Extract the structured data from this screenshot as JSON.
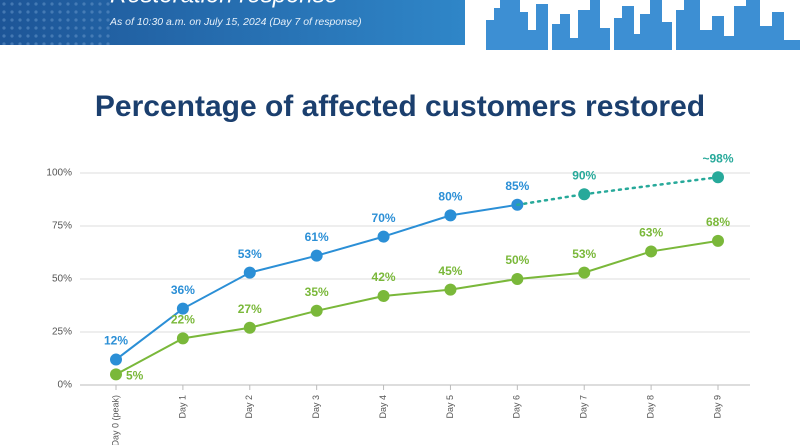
{
  "header": {
    "title": "Restoration response",
    "subtitle": "As of 10:30 a.m. on July 15, 2024 (Day 7 of response)"
  },
  "chart_data": {
    "type": "line",
    "title": "Percentage of affected customers restored",
    "categories": [
      "Day 0 (peak)",
      "Day 1",
      "Day 2",
      "Day 3",
      "Day 4",
      "Day 5",
      "Day 6",
      "Day 7",
      "Day 8",
      "Day 9"
    ],
    "ylim": [
      0,
      100
    ],
    "yticks": [
      {
        "value": 0,
        "label": "0%"
      },
      {
        "value": 25,
        "label": "25%"
      },
      {
        "value": 50,
        "label": "50%"
      },
      {
        "value": 75,
        "label": "75%"
      },
      {
        "value": 100,
        "label": "100%"
      }
    ],
    "grid": true,
    "series": [
      {
        "color": "#2b8fd6",
        "values": [
          12,
          36,
          53,
          61,
          70,
          80,
          85,
          null,
          null,
          null
        ],
        "value_labels": [
          "12%",
          "36%",
          "53%",
          "61%",
          "70%",
          "80%",
          "85%",
          null,
          null,
          null
        ]
      },
      {
        "color": "#7ab83a",
        "values": [
          5,
          22,
          27,
          35,
          42,
          45,
          50,
          53,
          63,
          68
        ],
        "value_labels": [
          "5%",
          "22%",
          "27%",
          "35%",
          "42%",
          "45%",
          "50%",
          "53%",
          "63%",
          "68%"
        ]
      },
      {
        "color": "#27a99a",
        "dashed": true,
        "values": [
          null,
          null,
          null,
          null,
          null,
          null,
          null,
          90,
          null,
          98
        ],
        "value_labels": [
          null,
          null,
          null,
          null,
          null,
          null,
          null,
          "90%",
          null,
          "~98%"
        ]
      }
    ]
  }
}
